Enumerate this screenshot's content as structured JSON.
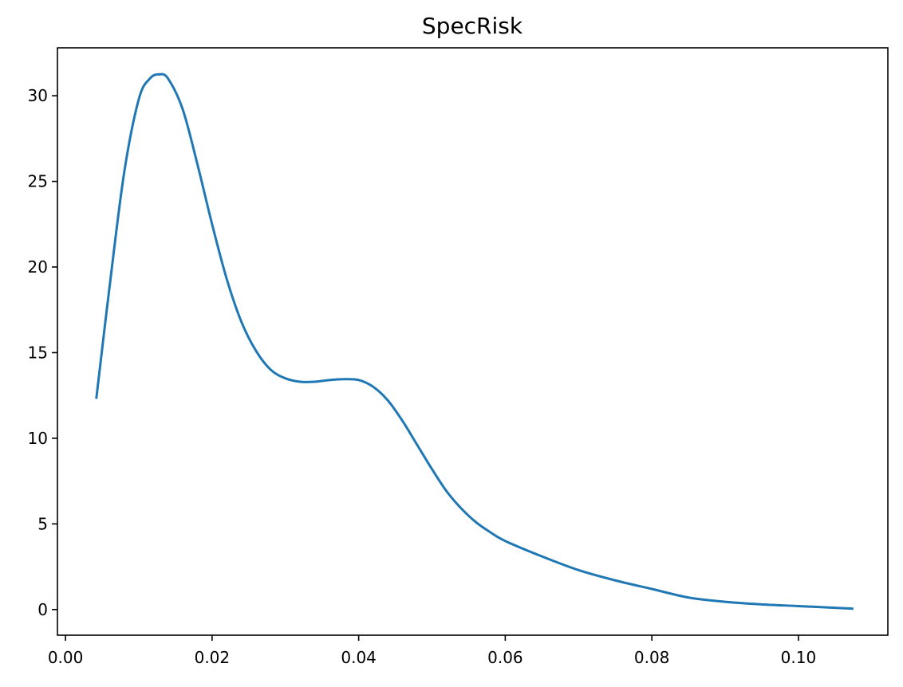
{
  "chart_data": {
    "type": "line",
    "title": "SpecRisk",
    "xlabel": "",
    "ylabel": "",
    "xlim": [
      -0.0011,
      0.1122
    ],
    "ylim": [
      -1.5,
      32.8
    ],
    "x_ticks": [
      0.0,
      0.02,
      0.04,
      0.06,
      0.08,
      0.1
    ],
    "x_tick_labels": [
      "0.00",
      "0.02",
      "0.04",
      "0.06",
      "0.08",
      "0.10"
    ],
    "y_ticks": [
      0,
      5,
      10,
      15,
      20,
      25,
      30
    ],
    "y_tick_labels": [
      "0",
      "5",
      "10",
      "15",
      "20",
      "25",
      "30"
    ],
    "grid": false,
    "legend": "none",
    "series": [
      {
        "color": "#1f77b4",
        "x": [
          0.0042,
          0.006,
          0.008,
          0.01,
          0.0115,
          0.0128,
          0.014,
          0.016,
          0.018,
          0.02,
          0.022,
          0.024,
          0.026,
          0.028,
          0.03,
          0.032,
          0.034,
          0.036,
          0.038,
          0.04,
          0.042,
          0.044,
          0.046,
          0.048,
          0.05,
          0.052,
          0.054,
          0.056,
          0.058,
          0.06,
          0.065,
          0.07,
          0.075,
          0.08,
          0.085,
          0.09,
          0.095,
          0.1,
          0.1075
        ],
        "y": [
          12.3,
          18.8,
          25.5,
          29.8,
          31.0,
          31.25,
          31.0,
          29.2,
          26.0,
          22.5,
          19.3,
          16.8,
          15.1,
          14.0,
          13.5,
          13.3,
          13.3,
          13.4,
          13.45,
          13.4,
          13.0,
          12.2,
          11.0,
          9.6,
          8.2,
          6.9,
          5.9,
          5.1,
          4.5,
          4.0,
          3.1,
          2.3,
          1.7,
          1.2,
          0.7,
          0.45,
          0.3,
          0.2,
          0.05
        ]
      }
    ]
  }
}
